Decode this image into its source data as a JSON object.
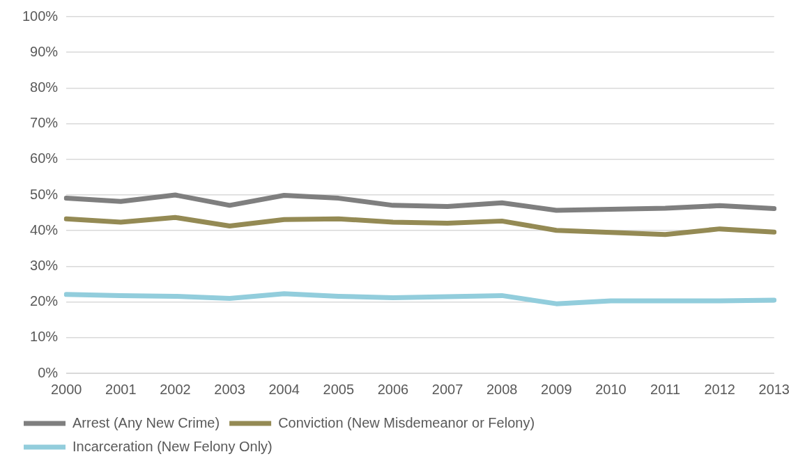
{
  "chart_data": {
    "type": "line",
    "categories": [
      "2000",
      "2001",
      "2002",
      "2003",
      "2004",
      "2005",
      "2006",
      "2007",
      "2008",
      "2009",
      "2010",
      "2011",
      "2012",
      "2013"
    ],
    "series": [
      {
        "name": "Arrest (Any New Crime)",
        "color": "#7f7f7f",
        "values": [
          49.1,
          48.2,
          50.0,
          47.1,
          49.9,
          49.1,
          47.1,
          46.8,
          47.8,
          45.7,
          46.0,
          46.3,
          47.0,
          46.2
        ]
      },
      {
        "name": "Conviction (New Misdemeanor or Felony)",
        "color": "#948a54",
        "values": [
          43.3,
          42.4,
          43.7,
          41.3,
          43.1,
          43.3,
          42.4,
          42.1,
          42.7,
          40.1,
          39.5,
          38.9,
          40.5,
          39.6
        ]
      },
      {
        "name": "Incarceration (New Felony Only)",
        "color": "#92cddc",
        "values": [
          22.1,
          21.8,
          21.6,
          21.0,
          22.3,
          21.6,
          21.2,
          21.5,
          21.8,
          19.5,
          20.3,
          20.3,
          20.3,
          20.5
        ]
      }
    ],
    "ylim": [
      0,
      100
    ],
    "yticks": [
      {
        "value": 0,
        "label": "0%"
      },
      {
        "value": 10,
        "label": "10%"
      },
      {
        "value": 20,
        "label": "20%"
      },
      {
        "value": 30,
        "label": "30%"
      },
      {
        "value": 40,
        "label": "40%"
      },
      {
        "value": 50,
        "label": "50%"
      },
      {
        "value": 60,
        "label": "60%"
      },
      {
        "value": 70,
        "label": "70%"
      },
      {
        "value": 80,
        "label": "80%"
      },
      {
        "value": 90,
        "label": "90%"
      },
      {
        "value": 100,
        "label": "100%"
      }
    ],
    "grid": "y",
    "legend": "bottom",
    "marker": "none",
    "line_style": "solid"
  }
}
